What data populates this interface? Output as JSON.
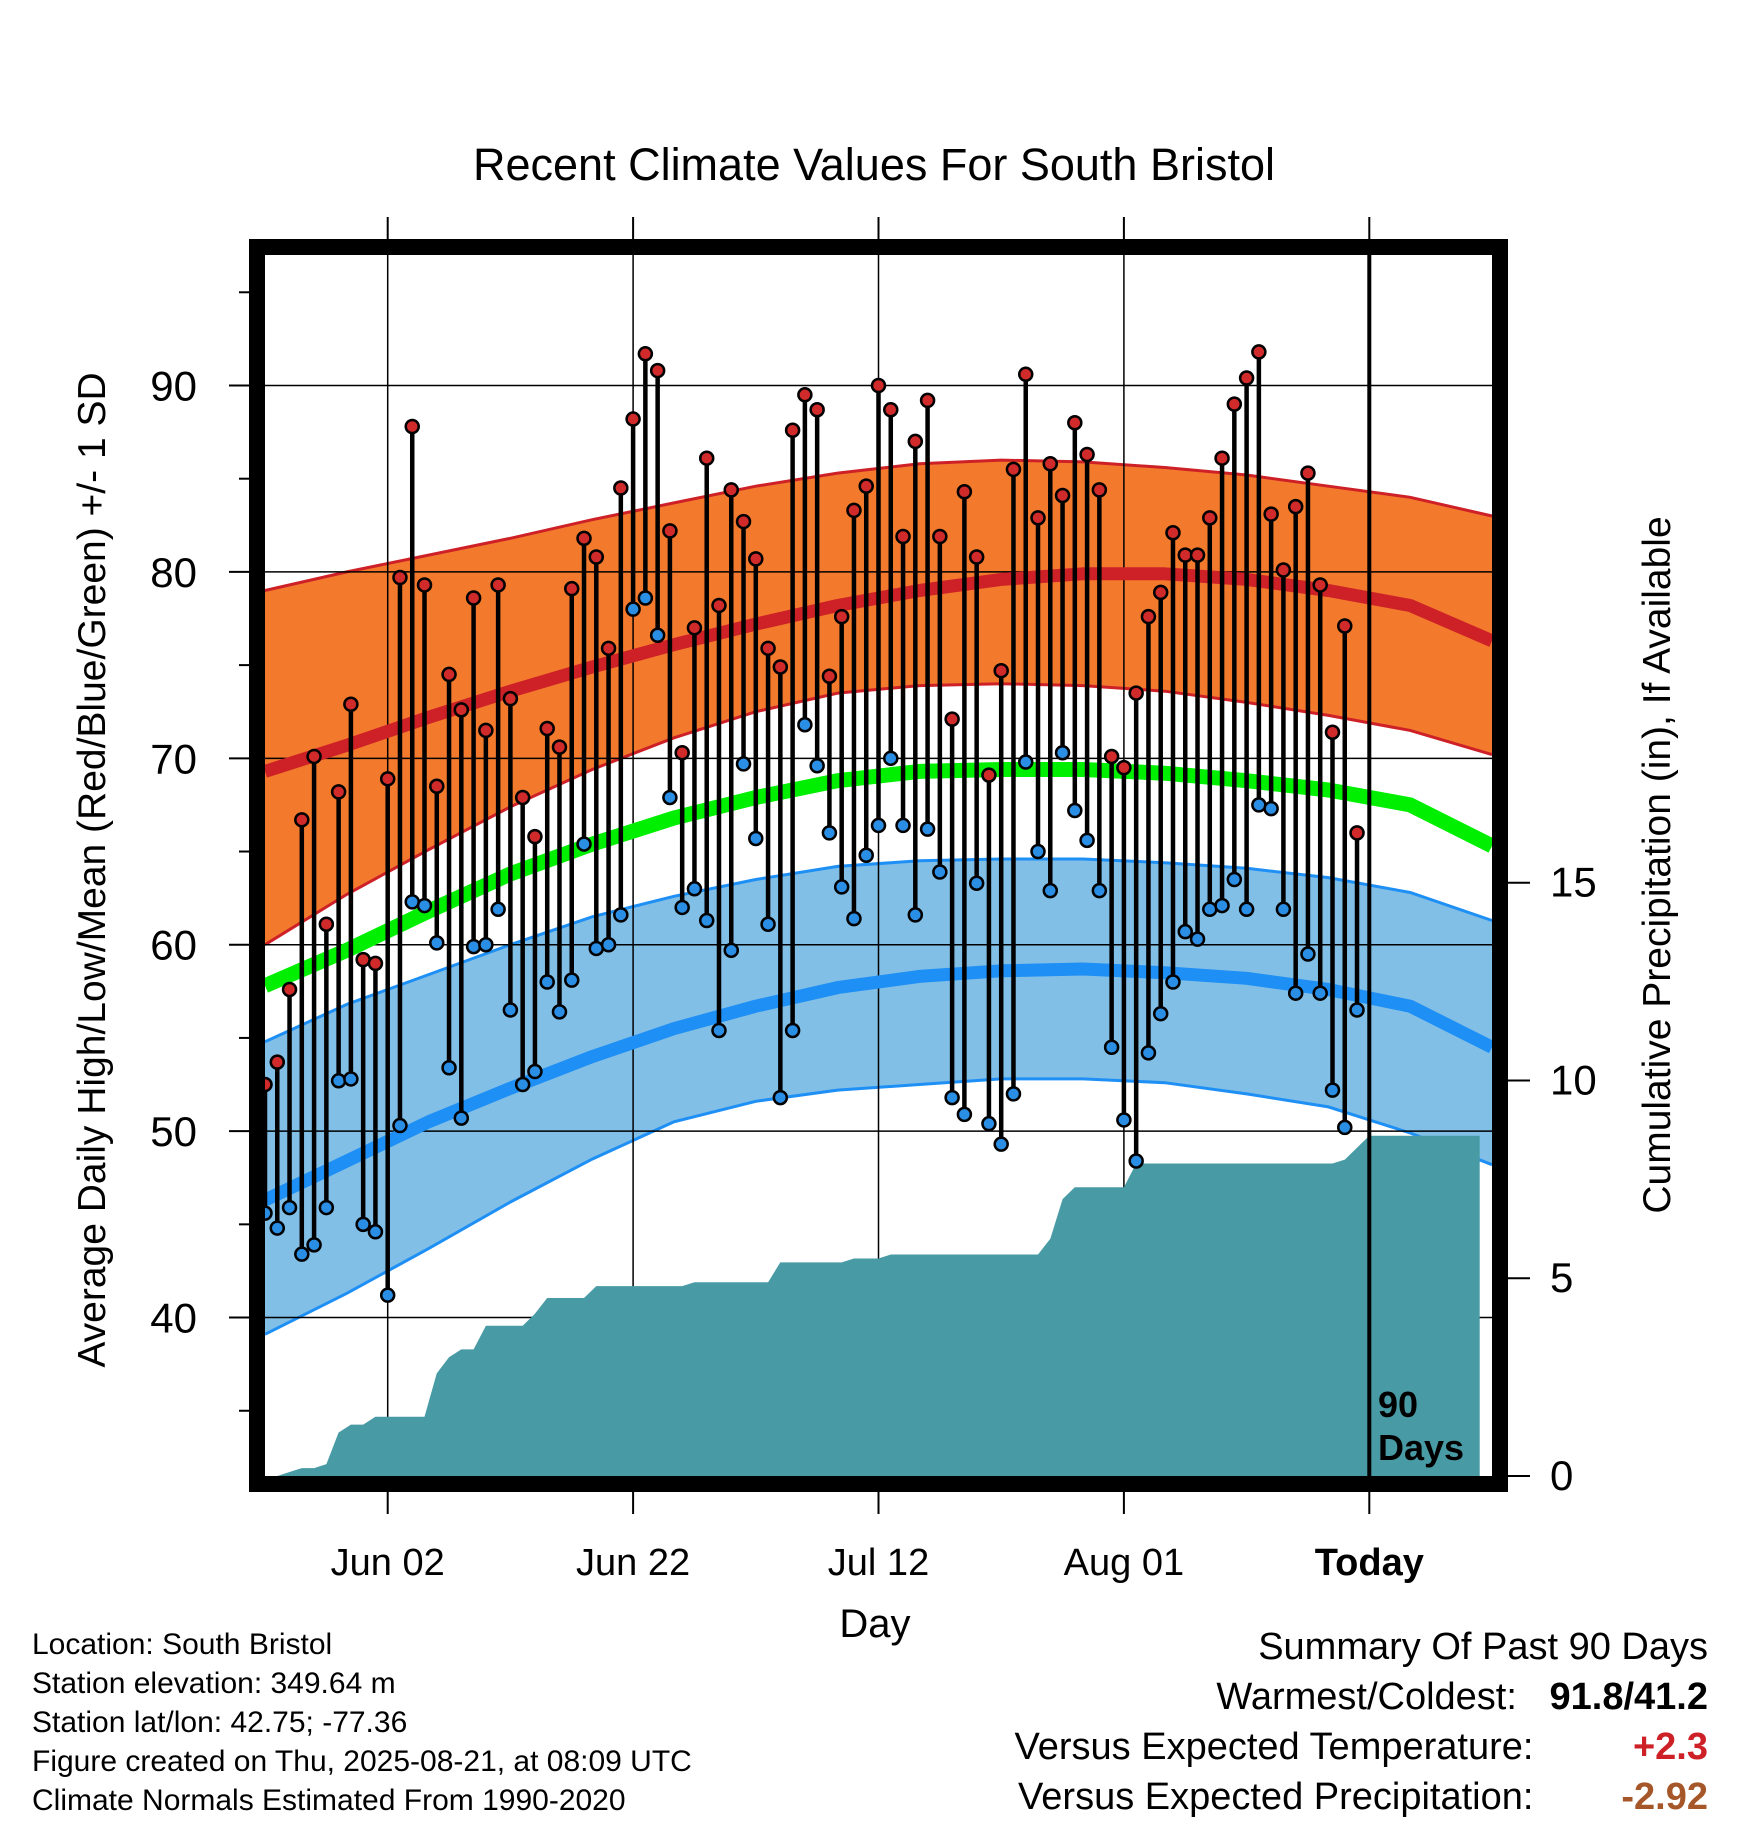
{
  "chart_data": {
    "type": "line",
    "title": "Recent Climate Values For South Bristol",
    "xlabel": "Day",
    "ylabel_left": "Average Daily High/Low/Mean (Red/Blue/Green) +/- 1 SD",
    "ylabel_right": "Cumulative Precipitation (in), If Available",
    "x_tick_labels": [
      "Jun 02",
      "Jun 22",
      "Jul 12",
      "Aug 01",
      "Today"
    ],
    "x_tick_days": [
      10,
      30,
      50,
      70,
      90
    ],
    "x_range": [
      0,
      100
    ],
    "y_left_ticks": [
      40,
      50,
      60,
      70,
      80,
      90
    ],
    "y_left_range": [
      31.5,
      97
    ],
    "y_right_ticks": [
      0,
      5,
      10,
      15
    ],
    "y_right_tick_labels": [
      "0",
      "5",
      "10",
      "15"
    ],
    "y_right_range": [
      0,
      30.87
    ],
    "today_marker": {
      "day": 90,
      "label_line1": "90",
      "label_line2": "Days"
    },
    "normal_high_mean": [
      69.3,
      70.7,
      72.2,
      73.6,
      74.9,
      76.1,
      77.2,
      78.2,
      79.0,
      79.6,
      79.9,
      79.9,
      79.6,
      79.0,
      78.2,
      76.3
    ],
    "normal_high_upper": [
      79.0,
      80.0,
      80.9,
      81.8,
      82.8,
      83.7,
      84.6,
      85.3,
      85.8,
      86.0,
      85.9,
      85.6,
      85.2,
      84.6,
      84.0,
      83.0
    ],
    "normal_high_lower": [
      60.0,
      62.7,
      65.1,
      67.4,
      69.4,
      71.1,
      72.5,
      73.5,
      73.9,
      74.0,
      73.9,
      73.6,
      73.0,
      72.3,
      71.5,
      70.2
    ],
    "normal_mean_temp": [
      57.8,
      59.7,
      61.8,
      63.8,
      65.4,
      66.8,
      67.9,
      68.8,
      69.3,
      69.4,
      69.4,
      69.2,
      68.8,
      68.3,
      67.5,
      65.3
    ],
    "normal_low_mean": [
      46.3,
      48.4,
      50.5,
      52.3,
      54.0,
      55.5,
      56.7,
      57.7,
      58.3,
      58.6,
      58.7,
      58.5,
      58.2,
      57.6,
      56.7,
      54.5
    ],
    "normal_low_upper": [
      54.8,
      56.8,
      58.4,
      60.0,
      61.5,
      62.6,
      63.5,
      64.2,
      64.5,
      64.6,
      64.6,
      64.4,
      64.1,
      63.6,
      62.8,
      61.3
    ],
    "normal_low_lower": [
      39.1,
      41.3,
      43.7,
      46.2,
      48.5,
      50.5,
      51.6,
      52.2,
      52.5,
      52.8,
      52.8,
      52.6,
      52.0,
      51.3,
      49.9,
      48.2
    ],
    "daily_high": [
      52.5,
      53.7,
      57.6,
      66.7,
      70.1,
      61.1,
      68.2,
      72.9,
      59.2,
      59.0,
      68.9,
      79.7,
      87.8,
      79.3,
      68.5,
      74.5,
      72.6,
      78.6,
      71.5,
      79.3,
      73.2,
      67.9,
      65.8,
      71.6,
      70.6,
      79.1,
      81.8,
      80.8,
      75.9,
      84.5,
      88.2,
      91.7,
      90.8,
      82.2,
      70.3,
      77.0,
      86.1,
      78.2,
      84.4,
      82.7,
      80.7,
      75.9,
      74.9,
      87.6,
      89.5,
      88.7,
      74.4,
      77.6,
      83.3,
      84.6,
      90.0,
      88.7,
      81.9,
      87.0,
      89.2,
      81.9,
      72.1,
      84.3,
      80.8,
      69.1,
      74.7,
      85.5,
      90.6,
      82.9,
      85.8,
      84.1,
      88.0,
      86.3,
      84.4,
      70.1,
      69.5,
      73.5,
      77.6,
      78.9,
      82.1,
      80.9,
      80.9,
      82.9,
      86.1,
      89.0,
      90.4,
      91.8,
      83.1,
      80.1,
      83.5,
      85.3,
      79.3,
      71.4,
      77.1,
      66.0
    ],
    "daily_low": [
      45.6,
      44.8,
      45.9,
      43.4,
      43.9,
      45.9,
      52.7,
      52.8,
      45.0,
      44.6,
      41.2,
      50.3,
      62.3,
      62.1,
      60.1,
      53.4,
      50.7,
      59.9,
      60.0,
      61.9,
      56.5,
      52.5,
      53.2,
      58.0,
      56.4,
      58.1,
      65.4,
      59.8,
      60.0,
      61.6,
      78.0,
      78.6,
      76.6,
      67.9,
      62.0,
      63.0,
      61.3,
      55.4,
      59.7,
      69.7,
      65.7,
      61.1,
      51.8,
      55.4,
      71.8,
      69.6,
      66.0,
      63.1,
      61.4,
      64.8,
      66.4,
      70.0,
      66.4,
      61.6,
      66.2,
      63.9,
      51.8,
      50.9,
      63.3,
      50.4,
      49.3,
      52.0,
      69.8,
      65.0,
      62.9,
      70.3,
      67.2,
      65.6,
      62.9,
      54.5,
      50.6,
      48.4,
      54.2,
      56.3,
      58.0,
      60.7,
      60.3,
      61.9,
      62.1,
      63.5,
      61.9,
      67.5,
      67.3,
      61.9,
      57.4,
      59.5,
      57.4,
      52.2,
      50.2,
      56.5
    ],
    "cumulative_precip": [
      0.0,
      0.0,
      0.1,
      0.2,
      0.2,
      0.3,
      1.1,
      1.3,
      1.3,
      1.5,
      1.5,
      1.5,
      1.5,
      1.5,
      2.6,
      3.0,
      3.2,
      3.2,
      3.8,
      3.8,
      3.8,
      3.8,
      4.1,
      4.5,
      4.5,
      4.5,
      4.5,
      4.8,
      4.8,
      4.8,
      4.8,
      4.8,
      4.8,
      4.8,
      4.8,
      4.9,
      4.9,
      4.9,
      4.9,
      4.9,
      4.9,
      4.9,
      5.4,
      5.4,
      5.4,
      5.4,
      5.4,
      5.4,
      5.5,
      5.5,
      5.5,
      5.6,
      5.6,
      5.6,
      5.6,
      5.6,
      5.6,
      5.6,
      5.6,
      5.6,
      5.6,
      5.6,
      5.6,
      5.6,
      6.0,
      7.0,
      7.3,
      7.3,
      7.3,
      7.3,
      7.3,
      7.9,
      7.9,
      7.9,
      7.9,
      7.9,
      7.9,
      7.9,
      7.9,
      7.9,
      7.9,
      7.9,
      7.9,
      7.9,
      7.9,
      7.9,
      7.9,
      7.9,
      8.0,
      8.3,
      8.6,
      8.6,
      8.6,
      8.6,
      8.6,
      8.6,
      8.6,
      8.6,
      8.6,
      8.6
    ],
    "colors": {
      "high_band": "#f37a2c",
      "high_line": "#cd2127",
      "mean_line": "#00ee00",
      "low_band": "#82bfe6",
      "low_line": "#1e8ff5",
      "high_marker": "#d02a2a",
      "low_marker": "#2a8ee5",
      "precip_fill": "#489ba5"
    }
  },
  "info": {
    "location": "Location: South Bristol",
    "elevation": "Station elevation: 349.64 m",
    "latlon": "Station lat/lon: 42.75; -77.36",
    "created": "Figure created on Thu, 2025-08-21, at 08:09 UTC",
    "normals": "Climate Normals Estimated From 1990-2020"
  },
  "summary": {
    "heading": "Summary Of Past 90 Days",
    "warm_cold_label": "Warmest/Coldest:",
    "warmest": "91.8",
    "slash": "/",
    "coldest": "41.2",
    "temp_label": "Versus Expected Temperature:",
    "temp_value": "+2.3",
    "temp_color": "#cd2127",
    "precip_label": "Versus Expected Precipitation:",
    "precip_value": "-2.92",
    "precip_color": "#a5572a"
  }
}
